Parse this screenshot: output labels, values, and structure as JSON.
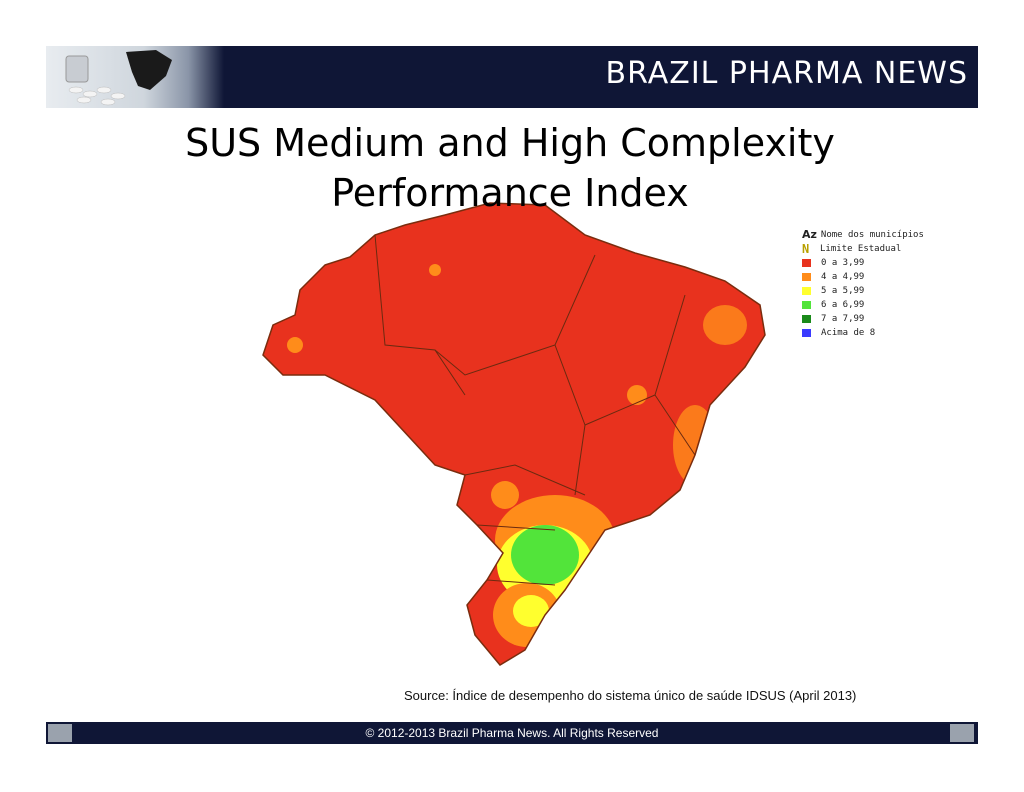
{
  "header": {
    "brand": "BRAZIL PHARMA NEWS"
  },
  "slide": {
    "title_line1": "SUS Medium and High Complexity",
    "title_line2": "Performance Index"
  },
  "legend": {
    "items": [
      {
        "prefix": "Az",
        "label": "Nome dos municípios"
      },
      {
        "prefix": "N",
        "label": "Limite Estadual"
      },
      {
        "label": "0 a 3,99",
        "color": "#e8321e"
      },
      {
        "label": "4 a 4,99",
        "color": "#ff8c1a"
      },
      {
        "label": "5 a 5,99",
        "color": "#ffff2e"
      },
      {
        "label": "6 a 6,99",
        "color": "#52e43a"
      },
      {
        "label": "7 a 7,99",
        "color": "#1a8a1a"
      },
      {
        "label": "Acima de 8",
        "color": "#3a3aff"
      }
    ]
  },
  "source": "Source:  Índice de desempenho do sistema único de saúde IDSUS (April 2013)",
  "footer": {
    "copyright": "© 2012-2013  Brazil Pharma News. All Rights Reserved"
  }
}
